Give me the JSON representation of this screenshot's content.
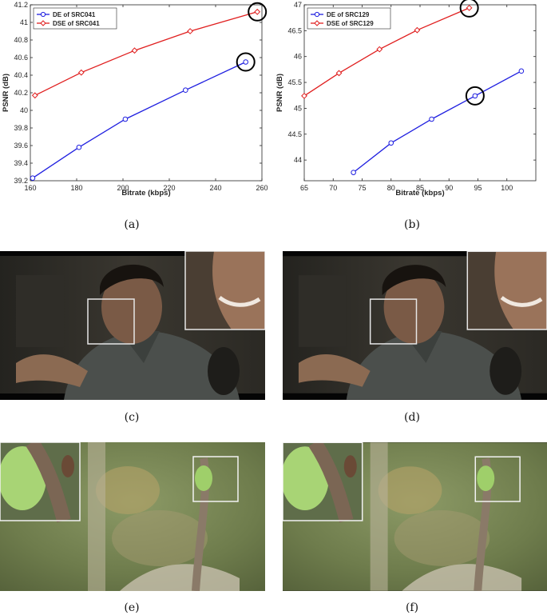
{
  "captions": {
    "a": "(a)",
    "b": "(b)",
    "c": "(c)",
    "d": "(d)",
    "e": "(e)",
    "f": "(f)"
  },
  "colors": {
    "de": "#1f1fe0",
    "dse": "#e01f1f"
  },
  "chart_data": [
    {
      "type": "line",
      "xlabel": "Bitrate (kbps)",
      "ylabel": "PSNR (dB)",
      "xlim": [
        160,
        260
      ],
      "ylim": [
        39.2,
        41.2
      ],
      "xticks": [
        160,
        180,
        200,
        220,
        240,
        260
      ],
      "yticks": [
        39.2,
        39.4,
        39.6,
        39.8,
        40,
        40.2,
        40.4,
        40.6,
        40.8,
        41,
        41.2
      ],
      "legend": "top-left",
      "grid": false,
      "series": [
        {
          "name": "DE of SRC041",
          "marker": "circle",
          "x": [
            161,
            181,
            201,
            227,
            253
          ],
          "y": [
            39.23,
            39.58,
            39.9,
            40.23,
            40.55
          ]
        },
        {
          "name": "DSE of SRC041",
          "marker": "diamond",
          "x": [
            162,
            182,
            205,
            229,
            258
          ],
          "y": [
            40.17,
            40.43,
            40.68,
            40.9,
            41.12
          ]
        }
      ],
      "highlights": [
        {
          "series": 0,
          "index": 4
        },
        {
          "series": 1,
          "index": 4
        }
      ]
    },
    {
      "type": "line",
      "xlabel": "Bitrate (kbps)",
      "ylabel": "PSNR (dB)",
      "xlim": [
        65,
        105
      ],
      "ylim": [
        43.6,
        47
      ],
      "xticks": [
        65,
        70,
        75,
        80,
        85,
        90,
        95,
        100
      ],
      "yticks": [
        44,
        44.5,
        45,
        45.5,
        46,
        46.5,
        47
      ],
      "legend": "top-left",
      "grid": false,
      "series": [
        {
          "name": "DE of SRC129",
          "marker": "circle",
          "x": [
            73.5,
            80,
            87,
            94.5,
            102.5
          ],
          "y": [
            43.76,
            44.33,
            44.79,
            45.24,
            45.72
          ]
        },
        {
          "name": "DSE of SRC129",
          "marker": "diamond",
          "x": [
            65,
            71,
            78,
            84.5,
            93.5
          ],
          "y": [
            45.24,
            45.68,
            46.14,
            46.51,
            46.94
          ]
        }
      ],
      "highlights": [
        {
          "series": 0,
          "index": 3
        },
        {
          "series": 1,
          "index": 4
        }
      ]
    }
  ]
}
